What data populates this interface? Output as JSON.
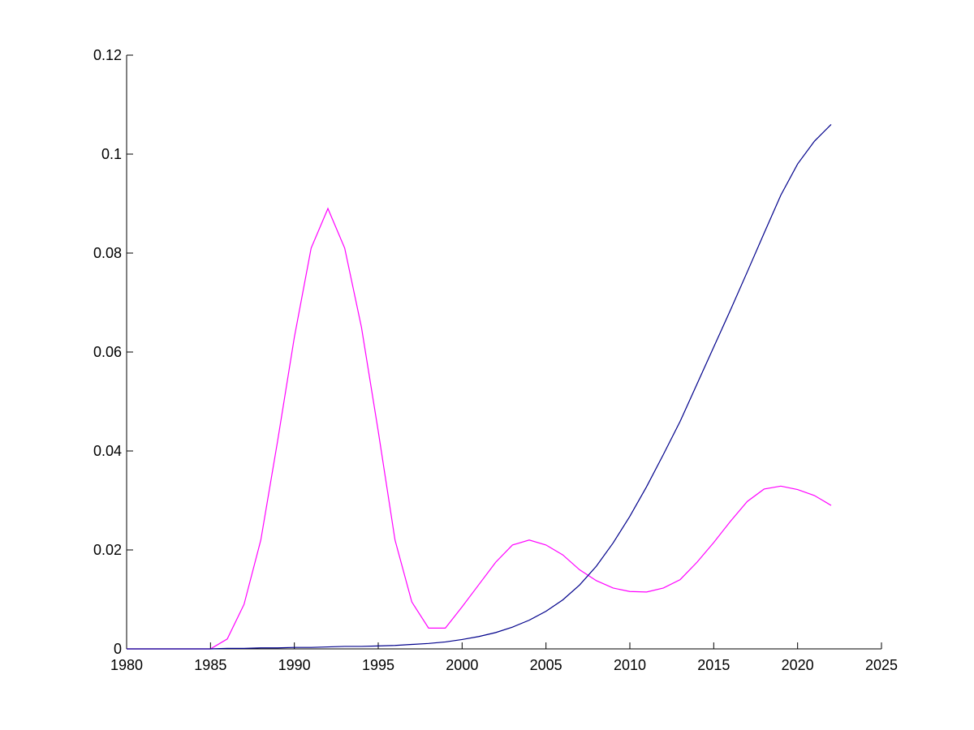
{
  "chart_data": {
    "type": "line",
    "x": [
      1980,
      1981,
      1982,
      1983,
      1984,
      1985,
      1986,
      1987,
      1988,
      1989,
      1990,
      1991,
      1992,
      1993,
      1994,
      1995,
      1996,
      1997,
      1998,
      1999,
      2000,
      2001,
      2002,
      2003,
      2004,
      2005,
      2006,
      2007,
      2008,
      2009,
      2010,
      2011,
      2012,
      2013,
      2014,
      2015,
      2016,
      2017,
      2018,
      2019,
      2020,
      2021,
      2022
    ],
    "series": [
      {
        "color": "#ff00ff",
        "values": [
          0,
          0,
          0,
          0,
          0,
          0,
          0.002,
          0.009,
          0.022,
          0.042,
          0.063,
          0.081,
          0.089,
          0.081,
          0.065,
          0.044,
          0.022,
          0.0095,
          0.0042,
          0.0042,
          0.0085,
          0.013,
          0.0175,
          0.021,
          0.022,
          0.021,
          0.019,
          0.016,
          0.0138,
          0.0123,
          0.0116,
          0.0115,
          0.0123,
          0.014,
          0.0175,
          0.0215,
          0.0258,
          0.0298,
          0.0323,
          0.0329,
          0.0322,
          0.031,
          0.029
        ]
      },
      {
        "color": "#00008b",
        "values": [
          0,
          0,
          0,
          0,
          0,
          0,
          0.0001,
          0.0001,
          0.0002,
          0.0002,
          0.0003,
          0.0003,
          0.0004,
          0.0005,
          0.0005,
          0.0006,
          0.0007,
          0.0009,
          0.0011,
          0.0014,
          0.0019,
          0.0025,
          0.0033,
          0.0044,
          0.0058,
          0.0076,
          0.0099,
          0.0129,
          0.0167,
          0.0214,
          0.0268,
          0.0328,
          0.0393,
          0.046,
          0.0535,
          0.061,
          0.0685,
          0.0762,
          0.084,
          0.0917,
          0.098,
          0.1026,
          0.106
        ]
      }
    ],
    "xlim": [
      1980,
      2025
    ],
    "xticks": [
      1980,
      1985,
      1990,
      1995,
      2000,
      2005,
      2010,
      2015,
      2020,
      2025
    ],
    "ylim": [
      0,
      0.12
    ],
    "yticks": [
      0,
      0.02,
      0.04,
      0.06,
      0.08,
      0.1,
      0.12
    ]
  }
}
